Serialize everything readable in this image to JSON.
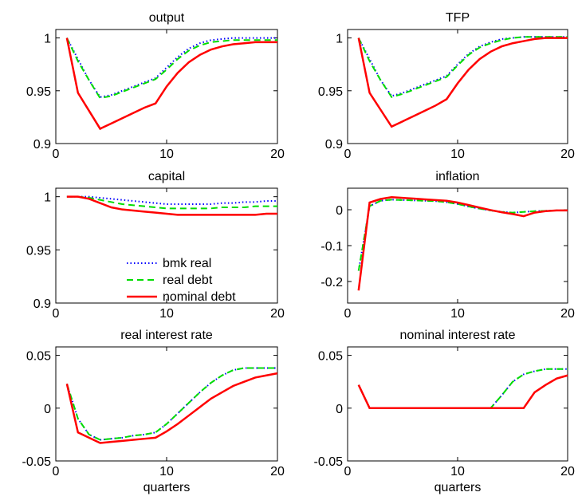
{
  "chart_data": [
    {
      "type": "line",
      "title": "output",
      "x": [
        1,
        2,
        3,
        4,
        5,
        6,
        7,
        8,
        9,
        10,
        11,
        12,
        13,
        14,
        15,
        16,
        17,
        18,
        19,
        20
      ],
      "xlim": [
        0,
        20
      ],
      "xticks": [
        0,
        10,
        20
      ],
      "ylim": [
        0.9,
        1.008
      ],
      "yticks": [
        0.9,
        0.95,
        1
      ],
      "series": [
        {
          "color": "#0000ff",
          "dash": "dotted",
          "values": [
            1,
            0.98,
            0.96,
            0.944,
            0.946,
            0.95,
            0.954,
            0.958,
            0.962,
            0.972,
            0.982,
            0.99,
            0.995,
            0.998,
            0.999,
            1,
            1,
            1,
            1,
            1
          ]
        },
        {
          "color": "#00dd00",
          "dash": "dashed",
          "values": [
            1,
            0.978,
            0.96,
            0.943,
            0.945,
            0.949,
            0.953,
            0.957,
            0.961,
            0.97,
            0.98,
            0.988,
            0.993,
            0.996,
            0.997,
            0.998,
            0.998,
            0.998,
            0.998,
            0.998
          ]
        },
        {
          "color": "#ff0000",
          "dash": "solid",
          "values": [
            1,
            0.948,
            0.931,
            0.914,
            0.919,
            0.924,
            0.929,
            0.934,
            0.938,
            0.954,
            0.967,
            0.977,
            0.984,
            0.989,
            0.992,
            0.994,
            0.995,
            0.996,
            0.996,
            0.996
          ]
        }
      ]
    },
    {
      "type": "line",
      "title": "TFP",
      "x": [
        1,
        2,
        3,
        4,
        5,
        6,
        7,
        8,
        9,
        10,
        11,
        12,
        13,
        14,
        15,
        16,
        17,
        18,
        19,
        20
      ],
      "xlim": [
        0,
        20
      ],
      "xticks": [
        0,
        10,
        20
      ],
      "ylim": [
        0.9,
        1.008
      ],
      "yticks": [
        0.9,
        0.95,
        1
      ],
      "series": [
        {
          "color": "#0000ff",
          "dash": "dotted",
          "values": [
            1,
            0.98,
            0.96,
            0.945,
            0.948,
            0.952,
            0.956,
            0.96,
            0.964,
            0.975,
            0.985,
            0.992,
            0.996,
            0.999,
            1,
            1.001,
            1.001,
            1.001,
            1.001,
            1.001
          ]
        },
        {
          "color": "#00dd00",
          "dash": "dashed",
          "values": [
            1,
            0.978,
            0.96,
            0.944,
            0.947,
            0.951,
            0.955,
            0.959,
            0.963,
            0.974,
            0.984,
            0.991,
            0.995,
            0.998,
            1,
            1.001,
            1.001,
            1.001,
            1.001,
            1.001
          ]
        },
        {
          "color": "#ff0000",
          "dash": "solid",
          "values": [
            1,
            0.948,
            0.932,
            0.916,
            0.921,
            0.926,
            0.931,
            0.936,
            0.942,
            0.957,
            0.97,
            0.98,
            0.987,
            0.992,
            0.995,
            0.997,
            0.999,
            1,
            1,
            1
          ]
        }
      ]
    },
    {
      "type": "line",
      "title": "capital",
      "x": [
        1,
        2,
        3,
        4,
        5,
        6,
        7,
        8,
        9,
        10,
        11,
        12,
        13,
        14,
        15,
        16,
        17,
        18,
        19,
        20
      ],
      "xlim": [
        0,
        20
      ],
      "xticks": [
        0,
        10,
        20
      ],
      "ylim": [
        0.9,
        1.008
      ],
      "yticks": [
        0.9,
        0.95,
        1
      ],
      "legend": "center",
      "series": [
        {
          "name": "bmk real",
          "color": "#0000ff",
          "dash": "dotted",
          "values": [
            1,
            1,
            1,
            0.999,
            0.998,
            0.997,
            0.996,
            0.995,
            0.994,
            0.993,
            0.993,
            0.993,
            0.993,
            0.993,
            0.994,
            0.994,
            0.995,
            0.995,
            0.996,
            0.996
          ]
        },
        {
          "name": "real debt",
          "color": "#00dd00",
          "dash": "dashed",
          "values": [
            1,
            1,
            0.999,
            0.997,
            0.995,
            0.993,
            0.992,
            0.991,
            0.99,
            0.989,
            0.989,
            0.989,
            0.989,
            0.989,
            0.99,
            0.99,
            0.99,
            0.991,
            0.991,
            0.991
          ]
        },
        {
          "name": "nominal debt",
          "color": "#ff0000",
          "dash": "solid",
          "values": [
            1,
            1,
            0.998,
            0.994,
            0.99,
            0.988,
            0.987,
            0.986,
            0.985,
            0.984,
            0.983,
            0.983,
            0.983,
            0.983,
            0.983,
            0.983,
            0.983,
            0.983,
            0.984,
            0.984
          ]
        }
      ]
    },
    {
      "type": "line",
      "title": "inflation",
      "x": [
        1,
        2,
        3,
        4,
        5,
        6,
        7,
        8,
        9,
        10,
        11,
        12,
        13,
        14,
        15,
        16,
        17,
        18,
        19,
        20
      ],
      "xlim": [
        0,
        20
      ],
      "xticks": [
        0,
        10,
        20
      ],
      "ylim": [
        -0.26,
        0.06
      ],
      "yticks": [
        -0.2,
        -0.1,
        0
      ],
      "series": [
        {
          "color": "#0000ff",
          "dash": "dotted",
          "values": [
            -0.17,
            0.01,
            0.025,
            0.028,
            0.027,
            0.026,
            0.025,
            0.024,
            0.021,
            0.016,
            0.009,
            0.003,
            -0.002,
            -0.006,
            -0.008,
            -0.006,
            -0.004,
            -0.003,
            -0.002,
            -0.002
          ]
        },
        {
          "color": "#00dd00",
          "dash": "dashed",
          "values": [
            -0.17,
            0.01,
            0.025,
            0.028,
            0.027,
            0.026,
            0.025,
            0.024,
            0.021,
            0.016,
            0.009,
            0.003,
            -0.002,
            -0.006,
            -0.008,
            -0.006,
            -0.004,
            -0.003,
            -0.002,
            -0.002
          ]
        },
        {
          "color": "#ff0000",
          "dash": "solid",
          "values": [
            -0.225,
            0.02,
            0.03,
            0.035,
            0.033,
            0.031,
            0.029,
            0.027,
            0.025,
            0.02,
            0.013,
            0.006,
            -0.001,
            -0.007,
            -0.012,
            -0.018,
            -0.008,
            -0.004,
            -0.002,
            -0.002
          ]
        }
      ]
    },
    {
      "type": "line",
      "title": "real interest rate",
      "xlabel": "quarters",
      "x": [
        1,
        2,
        3,
        4,
        5,
        6,
        7,
        8,
        9,
        10,
        11,
        12,
        13,
        14,
        15,
        16,
        17,
        18,
        19,
        20
      ],
      "xlim": [
        0,
        20
      ],
      "xticks": [
        0,
        10,
        20
      ],
      "ylim": [
        -0.05,
        0.058
      ],
      "yticks": [
        -0.05,
        0,
        0.05
      ],
      "series": [
        {
          "color": "#0000ff",
          "dash": "dotted",
          "values": [
            0.023,
            -0.01,
            -0.025,
            -0.03,
            -0.029,
            -0.028,
            -0.026,
            -0.025,
            -0.023,
            -0.015,
            -0.005,
            0.005,
            0.015,
            0.024,
            0.031,
            0.036,
            0.038,
            0.038,
            0.038,
            0.038
          ]
        },
        {
          "color": "#00dd00",
          "dash": "dashed",
          "values": [
            0.023,
            -0.01,
            -0.025,
            -0.03,
            -0.029,
            -0.028,
            -0.026,
            -0.025,
            -0.023,
            -0.015,
            -0.005,
            0.005,
            0.015,
            0.024,
            0.031,
            0.036,
            0.038,
            0.038,
            0.038,
            0.038
          ]
        },
        {
          "color": "#ff0000",
          "dash": "solid",
          "values": [
            0.023,
            -0.023,
            -0.028,
            -0.033,
            -0.032,
            -0.031,
            -0.03,
            -0.029,
            -0.028,
            -0.022,
            -0.015,
            -0.007,
            0.001,
            0.009,
            0.015,
            0.021,
            0.025,
            0.029,
            0.031,
            0.033
          ]
        }
      ]
    },
    {
      "type": "line",
      "title": "nominal interest rate",
      "xlabel": "quarters",
      "x": [
        1,
        2,
        3,
        4,
        5,
        6,
        7,
        8,
        9,
        10,
        11,
        12,
        13,
        14,
        15,
        16,
        17,
        18,
        19,
        20
      ],
      "xlim": [
        0,
        20
      ],
      "xticks": [
        0,
        10,
        20
      ],
      "ylim": [
        -0.05,
        0.058
      ],
      "yticks": [
        -0.05,
        0,
        0.05
      ],
      "series": [
        {
          "color": "#0000ff",
          "dash": "dotted",
          "values": [
            0.022,
            0,
            0,
            0,
            0,
            0,
            0,
            0,
            0,
            0,
            0,
            0,
            0,
            0.012,
            0.025,
            0.032,
            0.035,
            0.037,
            0.037,
            0.037
          ]
        },
        {
          "color": "#00dd00",
          "dash": "dashed",
          "values": [
            0.022,
            0,
            0,
            0,
            0,
            0,
            0,
            0,
            0,
            0,
            0,
            0,
            0,
            0.012,
            0.025,
            0.032,
            0.035,
            0.037,
            0.037,
            0.037
          ]
        },
        {
          "color": "#ff0000",
          "dash": "solid",
          "values": [
            0.022,
            0,
            0,
            0,
            0,
            0,
            0,
            0,
            0,
            0,
            0,
            0,
            0,
            0,
            0,
            0,
            0.015,
            0.022,
            0.028,
            0.031
          ]
        }
      ]
    }
  ]
}
